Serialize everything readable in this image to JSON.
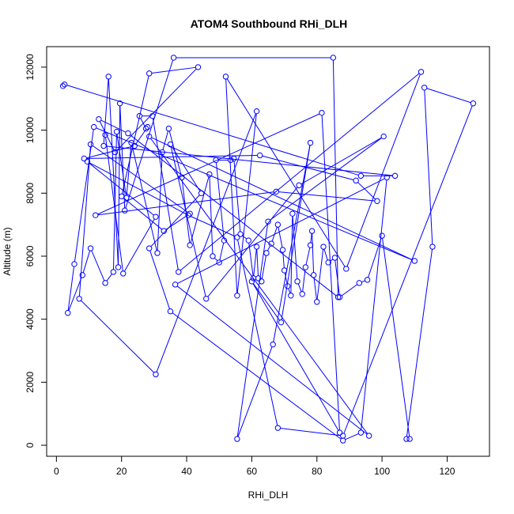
{
  "chart_data": {
    "type": "line",
    "title": "ATOM4 Southbound RHi_DLH",
    "xlabel": "RHi_DLH",
    "ylabel": "Altitude (m)",
    "xlim": [
      -3,
      133
    ],
    "ylim": [
      -350,
      12650
    ],
    "x_ticks": [
      0,
      20,
      40,
      60,
      80,
      100,
      120
    ],
    "y_ticks": [
      0,
      2000,
      4000,
      6000,
      8000,
      10000,
      12000
    ],
    "series_color": "#0000ff",
    "markers": "open-circle",
    "points": [
      [
        2.0,
        11400
      ],
      [
        2.5,
        11450
      ],
      [
        93.5,
        8550
      ],
      [
        104.0,
        8550
      ],
      [
        14.5,
        9500
      ],
      [
        16.0,
        11700
      ],
      [
        19.0,
        5650
      ],
      [
        19.5,
        10850
      ],
      [
        21.0,
        7450
      ],
      [
        36.0,
        12300
      ],
      [
        85.0,
        12300
      ],
      [
        86.5,
        4700
      ],
      [
        22.0,
        9900
      ],
      [
        13.0,
        10350
      ],
      [
        18.0,
        9300
      ],
      [
        43.5,
        12000
      ],
      [
        28.5,
        11800
      ],
      [
        20.0,
        7900
      ],
      [
        33.0,
        6800
      ],
      [
        41.0,
        7350
      ],
      [
        10.5,
        9550
      ],
      [
        7.0,
        4650
      ],
      [
        30.5,
        2250
      ],
      [
        61.5,
        10600
      ],
      [
        55.5,
        4750
      ],
      [
        52.0,
        11700
      ],
      [
        89.0,
        5600
      ],
      [
        112.0,
        11850
      ],
      [
        37.5,
        5500
      ],
      [
        29.5,
        10450
      ],
      [
        25.5,
        10450
      ],
      [
        27.5,
        10050
      ],
      [
        28.0,
        10100
      ],
      [
        24.0,
        9500
      ],
      [
        8.5,
        9100
      ],
      [
        62.5,
        9200
      ],
      [
        92.0,
        8400
      ],
      [
        98.5,
        7750
      ],
      [
        67.5,
        8050
      ],
      [
        12.0,
        7300
      ],
      [
        81.5,
        10550
      ],
      [
        87.0,
        400
      ],
      [
        60.0,
        5200
      ],
      [
        69.0,
        3900
      ],
      [
        78.0,
        9600
      ],
      [
        66.5,
        3200
      ],
      [
        55.5,
        200
      ],
      [
        65.0,
        7100
      ],
      [
        100.5,
        9800
      ],
      [
        74.5,
        8250
      ],
      [
        46.0,
        4650
      ],
      [
        35.0,
        9550
      ],
      [
        44.5,
        8000
      ],
      [
        28.5,
        6250
      ],
      [
        35.0,
        4250
      ],
      [
        88.0,
        150
      ],
      [
        93.5,
        400
      ],
      [
        101.5,
        8500
      ],
      [
        36.5,
        5100
      ],
      [
        96.0,
        300
      ],
      [
        28.5,
        9800
      ],
      [
        110.0,
        5850
      ],
      [
        11.5,
        10100
      ],
      [
        5.5,
        5750
      ],
      [
        3.5,
        4200
      ],
      [
        8.0,
        5400
      ],
      [
        10.5,
        6250
      ],
      [
        15.0,
        5150
      ],
      [
        17.5,
        5500
      ],
      [
        18.5,
        9950
      ],
      [
        21.5,
        7850
      ],
      [
        23.0,
        9600
      ],
      [
        31.0,
        6100
      ],
      [
        32.5,
        9300
      ],
      [
        34.5,
        10050
      ],
      [
        38.5,
        8500
      ],
      [
        41.0,
        6350
      ],
      [
        47.0,
        8600
      ],
      [
        48.0,
        6000
      ],
      [
        50.0,
        5800
      ],
      [
        51.5,
        6500
      ],
      [
        49.0,
        9050
      ],
      [
        53.5,
        9050
      ],
      [
        54.5,
        9100
      ],
      [
        56.5,
        6700
      ],
      [
        59.0,
        6500
      ],
      [
        60.5,
        5300
      ],
      [
        61.5,
        6300
      ],
      [
        62.0,
        5300
      ],
      [
        63.0,
        5200
      ],
      [
        64.5,
        6100
      ],
      [
        66.0,
        6400
      ],
      [
        68.0,
        7000
      ],
      [
        69.5,
        6200
      ],
      [
        70.0,
        5550
      ],
      [
        71.0,
        5050
      ],
      [
        72.0,
        4750
      ],
      [
        72.5,
        7350
      ],
      [
        74.0,
        5200
      ],
      [
        75.5,
        4800
      ],
      [
        76.5,
        5650
      ],
      [
        78.0,
        6350
      ],
      [
        78.5,
        6800
      ],
      [
        79.0,
        5400
      ],
      [
        80.0,
        4550
      ],
      [
        82.0,
        6300
      ],
      [
        83.5,
        5800
      ],
      [
        85.5,
        5950
      ],
      [
        87.0,
        4700
      ],
      [
        93.0,
        5150
      ],
      [
        95.5,
        5250
      ],
      [
        100.0,
        6650
      ],
      [
        108.5,
        200
      ],
      [
        107.5,
        200
      ],
      [
        115.5,
        6300
      ],
      [
        113.0,
        11350
      ],
      [
        128.0,
        10850
      ],
      [
        88.0,
        300
      ],
      [
        68.0,
        550
      ],
      [
        55.5,
        6600
      ],
      [
        40.5,
        7300
      ],
      [
        9.5,
        9000
      ],
      [
        30.5,
        7250
      ],
      [
        20.5,
        5450
      ],
      [
        15.0,
        9850
      ]
    ]
  }
}
